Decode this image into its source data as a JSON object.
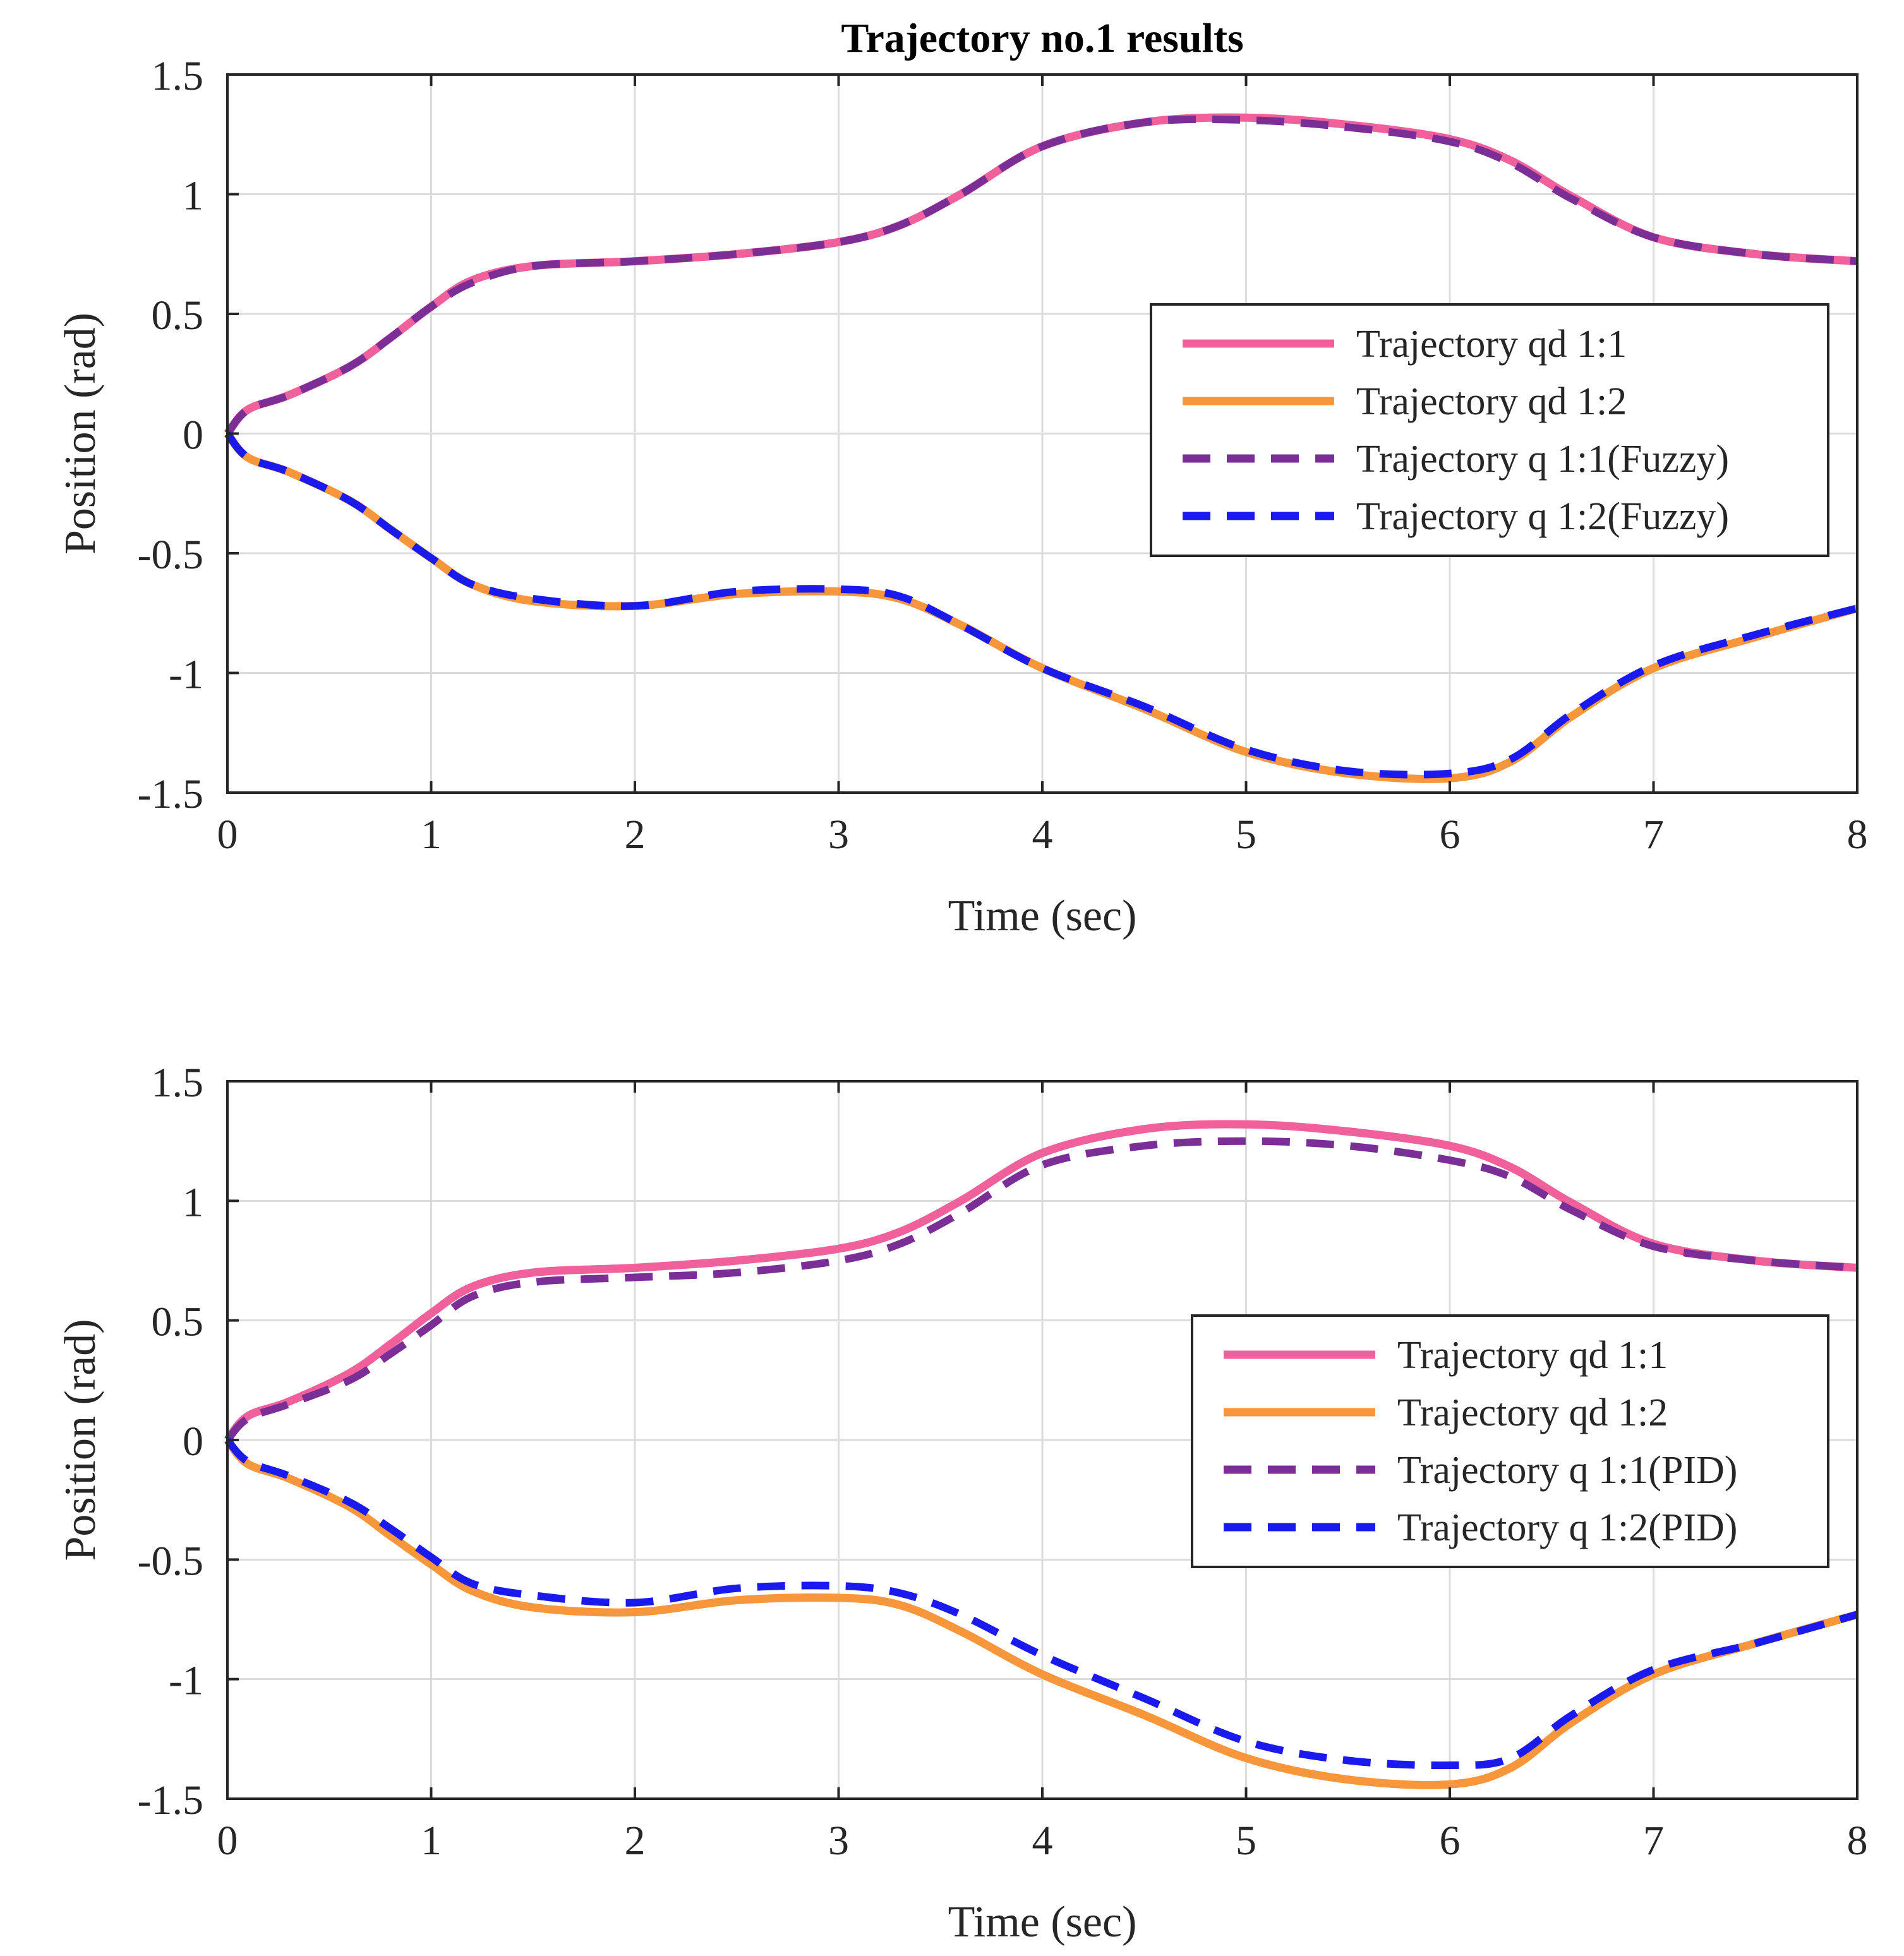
{
  "figure_title": "Trajectory no.1 results",
  "colors": {
    "qd11": "#f0609a",
    "qd12": "#f7963a",
    "q11": "#7a2e96",
    "q12": "#1a1aee",
    "grid": "#dcdcdc",
    "axes": "#262626"
  },
  "chart_data": [
    {
      "type": "line",
      "title": "Trajectory no.1 results",
      "xlabel": "Time (sec)",
      "ylabel": "Position (rad)",
      "xlim": [
        0,
        8
      ],
      "ylim": [
        -1.5,
        1.5
      ],
      "xticks": [
        "0",
        "1",
        "2",
        "3",
        "4",
        "5",
        "6",
        "7",
        "8"
      ],
      "yticks": [
        "1.5",
        "1",
        "0.5",
        "0",
        "-0.5",
        "-1",
        "-1.5"
      ],
      "grid": true,
      "legend_position": "right-center",
      "x": [
        0,
        0.1,
        0.3,
        0.6,
        0.8,
        1.0,
        1.2,
        1.5,
        2.0,
        2.5,
        3.0,
        3.3,
        3.6,
        4.0,
        4.5,
        5.0,
        5.5,
        6.0,
        6.3,
        6.6,
        7.0,
        7.5,
        8.0
      ],
      "series": [
        {
          "name": "Trajectory qd 1:1",
          "style": "solid",
          "color": "#f0609a",
          "values": [
            0,
            0.1,
            0.16,
            0.28,
            0.4,
            0.53,
            0.64,
            0.7,
            0.72,
            0.75,
            0.8,
            0.87,
            1.0,
            1.2,
            1.3,
            1.32,
            1.29,
            1.23,
            1.14,
            0.99,
            0.82,
            0.75,
            0.72
          ]
        },
        {
          "name": "Trajectory qd 1:2",
          "style": "solid",
          "color": "#f7963a",
          "values": [
            0,
            -0.1,
            -0.16,
            -0.28,
            -0.4,
            -0.52,
            -0.63,
            -0.7,
            -0.72,
            -0.67,
            -0.66,
            -0.69,
            -0.8,
            -0.98,
            -1.15,
            -1.33,
            -1.42,
            -1.44,
            -1.37,
            -1.18,
            -0.98,
            -0.85,
            -0.73
          ]
        },
        {
          "name": "Trajectory q 1:1(Fuzzy)",
          "style": "dashed",
          "color": "#7a2e96",
          "values": [
            0,
            0.1,
            0.16,
            0.28,
            0.4,
            0.53,
            0.63,
            0.7,
            0.72,
            0.75,
            0.8,
            0.87,
            1.0,
            1.2,
            1.3,
            1.31,
            1.28,
            1.22,
            1.13,
            0.98,
            0.82,
            0.75,
            0.72
          ]
        },
        {
          "name": "Trajectory q 1:2(Fuzzy)",
          "style": "dashed",
          "color": "#1a1aee",
          "values": [
            0,
            -0.1,
            -0.16,
            -0.28,
            -0.4,
            -0.52,
            -0.63,
            -0.69,
            -0.72,
            -0.66,
            -0.65,
            -0.68,
            -0.8,
            -0.98,
            -1.14,
            -1.32,
            -1.41,
            -1.42,
            -1.36,
            -1.17,
            -0.97,
            -0.84,
            -0.73
          ]
        }
      ]
    },
    {
      "type": "line",
      "title": "",
      "xlabel": "Time (sec)",
      "ylabel": "Position (rad)",
      "xlim": [
        0,
        8
      ],
      "ylim": [
        -1.5,
        1.5
      ],
      "xticks": [
        "0",
        "1",
        "2",
        "3",
        "4",
        "5",
        "6",
        "7",
        "8"
      ],
      "yticks": [
        "1.5",
        "1",
        "0.5",
        "0",
        "-0.5",
        "-1",
        "-1.5"
      ],
      "grid": true,
      "legend_position": "right-center",
      "x": [
        0,
        0.1,
        0.3,
        0.6,
        0.8,
        1.0,
        1.2,
        1.5,
        2.0,
        2.5,
        3.0,
        3.3,
        3.6,
        4.0,
        4.5,
        5.0,
        5.5,
        6.0,
        6.3,
        6.6,
        7.0,
        7.5,
        8.0
      ],
      "series": [
        {
          "name": "Trajectory qd 1:1",
          "style": "solid",
          "color": "#f0609a",
          "values": [
            0,
            0.1,
            0.16,
            0.28,
            0.4,
            0.53,
            0.64,
            0.7,
            0.72,
            0.75,
            0.8,
            0.87,
            1.0,
            1.2,
            1.3,
            1.32,
            1.29,
            1.23,
            1.14,
            0.99,
            0.82,
            0.75,
            0.72
          ]
        },
        {
          "name": "Trajectory qd 1:2",
          "style": "solid",
          "color": "#f7963a",
          "values": [
            0,
            -0.1,
            -0.16,
            -0.28,
            -0.4,
            -0.52,
            -0.63,
            -0.7,
            -0.72,
            -0.67,
            -0.66,
            -0.69,
            -0.8,
            -0.98,
            -1.15,
            -1.33,
            -1.42,
            -1.44,
            -1.37,
            -1.18,
            -0.98,
            -0.85,
            -0.73
          ]
        },
        {
          "name": "Trajectory q 1:1(PID)",
          "style": "dashed",
          "color": "#7a2e96",
          "values": [
            0,
            0.09,
            0.15,
            0.25,
            0.36,
            0.48,
            0.6,
            0.66,
            0.68,
            0.7,
            0.75,
            0.82,
            0.95,
            1.15,
            1.23,
            1.25,
            1.23,
            1.17,
            1.1,
            0.96,
            0.81,
            0.75,
            0.72
          ]
        },
        {
          "name": "Trajectory q 1:2(PID)",
          "style": "dashed",
          "color": "#1a1aee",
          "values": [
            0,
            -0.09,
            -0.15,
            -0.26,
            -0.37,
            -0.49,
            -0.6,
            -0.65,
            -0.68,
            -0.62,
            -0.61,
            -0.64,
            -0.73,
            -0.9,
            -1.08,
            -1.26,
            -1.34,
            -1.36,
            -1.33,
            -1.15,
            -0.96,
            -0.85,
            -0.73
          ]
        }
      ]
    }
  ]
}
